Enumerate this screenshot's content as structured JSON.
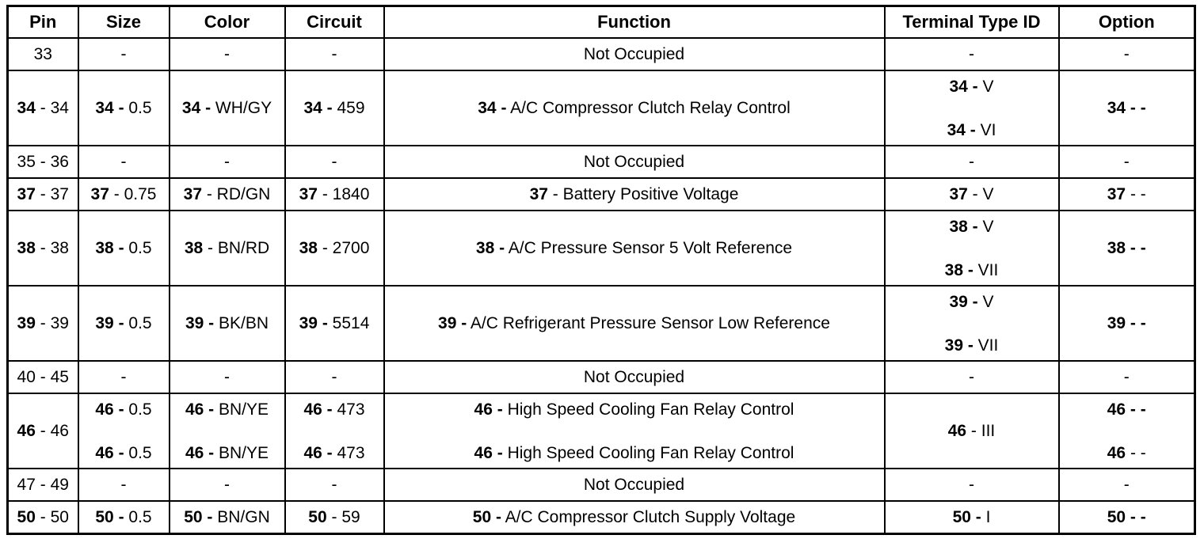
{
  "table": {
    "headers": [
      "Pin",
      "Size",
      "Color",
      "Circuit",
      "Function",
      "Terminal Type ID",
      "Option"
    ],
    "rows": [
      [
        [
          "33"
        ],
        [
          "-"
        ],
        [
          "-"
        ],
        [
          "-"
        ],
        [
          "Not Occupied"
        ],
        [
          "-"
        ],
        [
          "-"
        ]
      ],
      [
        [
          {
            "b": "34",
            "t": "- 34"
          }
        ],
        [
          {
            "b": "34 -",
            "t": "0.5"
          }
        ],
        [
          {
            "b": "34 -",
            "t": "WH/GY"
          }
        ],
        [
          {
            "b": "34 -",
            "t": "459"
          }
        ],
        [
          {
            "b": "34 -",
            "t": "A/C Compressor Clutch Relay Control"
          }
        ],
        [
          {
            "b": "34 -",
            "t": "V"
          },
          {
            "b": "34 -",
            "t": "VI"
          }
        ],
        [
          {
            "b": "34 - -"
          }
        ]
      ],
      [
        [
          "35 - 36"
        ],
        [
          "-"
        ],
        [
          "-"
        ],
        [
          "-"
        ],
        [
          "Not Occupied"
        ],
        [
          "-"
        ],
        [
          "-"
        ]
      ],
      [
        [
          {
            "b": "37",
            "t": "- 37"
          }
        ],
        [
          {
            "b": "37",
            "t": "- 0.75"
          }
        ],
        [
          {
            "b": "37",
            "t": "- RD/GN"
          }
        ],
        [
          {
            "b": "37",
            "t": "- 1840"
          }
        ],
        [
          {
            "b": "37",
            "t": "- Battery Positive Voltage"
          }
        ],
        [
          {
            "b": "37",
            "t": "- V"
          }
        ],
        [
          {
            "b": "37",
            "t": "- -"
          }
        ]
      ],
      [
        [
          {
            "b": "38",
            "t": "- 38"
          }
        ],
        [
          {
            "b": "38 -",
            "t": "0.5"
          }
        ],
        [
          {
            "b": "38",
            "t": "- BN/RD"
          }
        ],
        [
          {
            "b": "38",
            "t": "- 2700"
          }
        ],
        [
          {
            "b": "38 -",
            "t": "A/C Pressure Sensor 5 Volt Reference"
          }
        ],
        [
          {
            "b": "38 -",
            "t": "V"
          },
          {
            "b": "38 -",
            "t": "VII"
          }
        ],
        [
          {
            "b": "38 - -"
          }
        ]
      ],
      [
        [
          {
            "b": "39",
            "t": "- 39"
          }
        ],
        [
          {
            "b": "39 -",
            "t": "0.5"
          }
        ],
        [
          {
            "b": "39 -",
            "t": "BK/BN"
          }
        ],
        [
          {
            "b": "39 -",
            "t": "5514"
          }
        ],
        [
          {
            "b": "39 -",
            "t": "A/C Refrigerant Pressure Sensor Low Reference"
          }
        ],
        [
          {
            "b": "39 -",
            "t": "V"
          },
          {
            "b": "39 -",
            "t": "VII"
          }
        ],
        [
          {
            "b": "39 - -"
          }
        ]
      ],
      [
        [
          "40 - 45"
        ],
        [
          "-"
        ],
        [
          "-"
        ],
        [
          "-"
        ],
        [
          "Not Occupied"
        ],
        [
          "-"
        ],
        [
          "-"
        ]
      ],
      [
        [
          {
            "b": "46",
            "t": "- 46"
          }
        ],
        [
          {
            "b": "46 -",
            "t": "0.5"
          },
          {
            "b": "46 -",
            "t": "0.5"
          }
        ],
        [
          {
            "b": "46 -",
            "t": "BN/YE"
          },
          {
            "b": "46 -",
            "t": "BN/YE"
          }
        ],
        [
          {
            "b": "46 -",
            "t": "473"
          },
          {
            "b": "46 -",
            "t": "473"
          }
        ],
        [
          {
            "b": "46 -",
            "t": "High Speed Cooling Fan Relay Control"
          },
          {
            "b": "46 -",
            "t": "High Speed Cooling Fan Relay Control"
          }
        ],
        [
          {
            "b": "46",
            "t": "- III"
          }
        ],
        [
          {
            "b": "46 - -"
          },
          {
            "b": "46",
            "t": "- -"
          }
        ]
      ],
      [
        [
          "47 - 49"
        ],
        [
          "-"
        ],
        [
          "-"
        ],
        [
          "-"
        ],
        [
          "Not Occupied"
        ],
        [
          "-"
        ],
        [
          "-"
        ]
      ],
      [
        [
          {
            "b": "50",
            "t": "- 50"
          }
        ],
        [
          {
            "b": "50 -",
            "t": "0.5"
          }
        ],
        [
          {
            "b": "50 -",
            "t": "BN/GN"
          }
        ],
        [
          {
            "b": "50",
            "t": "- 59"
          }
        ],
        [
          {
            "b": "50 -",
            "t": "A/C Compressor Clutch Supply Voltage"
          }
        ],
        [
          {
            "b": "50 -",
            "t": "I"
          }
        ],
        [
          {
            "b": "50 - -"
          }
        ]
      ]
    ]
  }
}
